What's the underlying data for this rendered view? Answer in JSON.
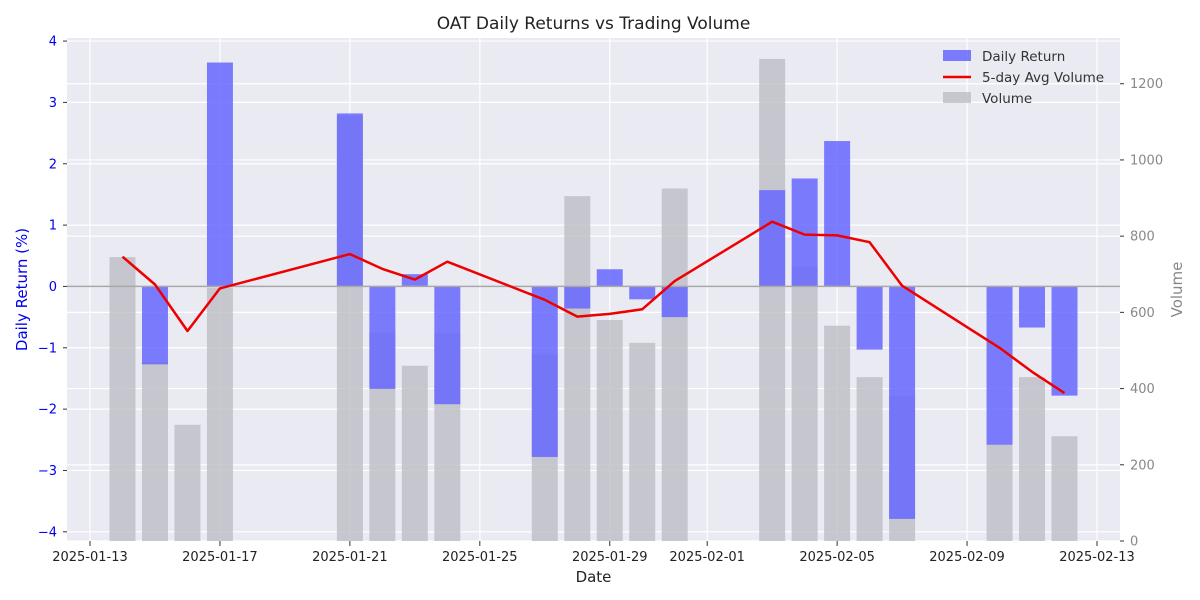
{
  "chart_data": {
    "type": "bar",
    "title": "OAT Daily Returns vs Trading Volume",
    "xlabel": "Date",
    "ylabel": "Daily Return (%)",
    "y2label": "Volume",
    "ylim": [
      -4.15,
      4.05
    ],
    "y2lim": [
      0,
      1320
    ],
    "yticks": [
      -4,
      -3,
      -2,
      -1,
      0,
      1,
      2,
      3,
      4
    ],
    "y2ticks": [
      0,
      200,
      400,
      600,
      800,
      1000,
      1200
    ],
    "xticks": [
      "2025-01-13",
      "2025-01-17",
      "2025-01-21",
      "2025-01-25",
      "2025-01-29",
      "2025-02-01",
      "2025-02-05",
      "2025-02-09",
      "2025-02-13"
    ],
    "legend_position": "top-right",
    "grid": true,
    "colors": {
      "returns": "#6666ff",
      "volume": "#bdbdc4",
      "avg_line": "#ee0000",
      "left_axis_text": "#0000ee",
      "right_axis_text": "#888888",
      "background": "#eaeaf2"
    },
    "dates": [
      "2025-01-14",
      "2025-01-15",
      "2025-01-16",
      "2025-01-17",
      "2025-01-21",
      "2025-01-22",
      "2025-01-23",
      "2025-01-24",
      "2025-01-27",
      "2025-01-28",
      "2025-01-29",
      "2025-01-30",
      "2025-01-31",
      "2025-02-03",
      "2025-02-04",
      "2025-02-05",
      "2025-02-06",
      "2025-02-07",
      "2025-02-10",
      "2025-02-11",
      "2025-02-12"
    ],
    "series": [
      {
        "name": "Daily Return",
        "kind": "bar",
        "axis": "left",
        "values": [
          0,
          -1.27,
          0,
          3.65,
          2.82,
          -1.67,
          0.2,
          -1.92,
          -2.78,
          -0.36,
          0.28,
          -0.21,
          -0.5,
          1.57,
          1.76,
          2.37,
          -1.03,
          -3.79,
          -2.58,
          -0.67,
          -1.78
        ]
      },
      {
        "name": "5-day Avg Volume",
        "kind": "line",
        "axis": "right",
        "values": [
          746,
          673,
          551,
          663,
          753,
          714,
          686,
          733,
          633,
          589,
          596,
          608,
          682,
          838,
          804,
          802,
          784,
          670,
          507,
          444,
          388
        ]
      },
      {
        "name": "Volume",
        "kind": "bar",
        "axis": "right",
        "values": [
          745,
          470,
          305,
          665,
          1115,
          547,
          460,
          545,
          490,
          905,
          580,
          520,
          925,
          1265,
          720,
          565,
          430,
          380,
          255,
          430,
          275
        ]
      }
    ]
  }
}
